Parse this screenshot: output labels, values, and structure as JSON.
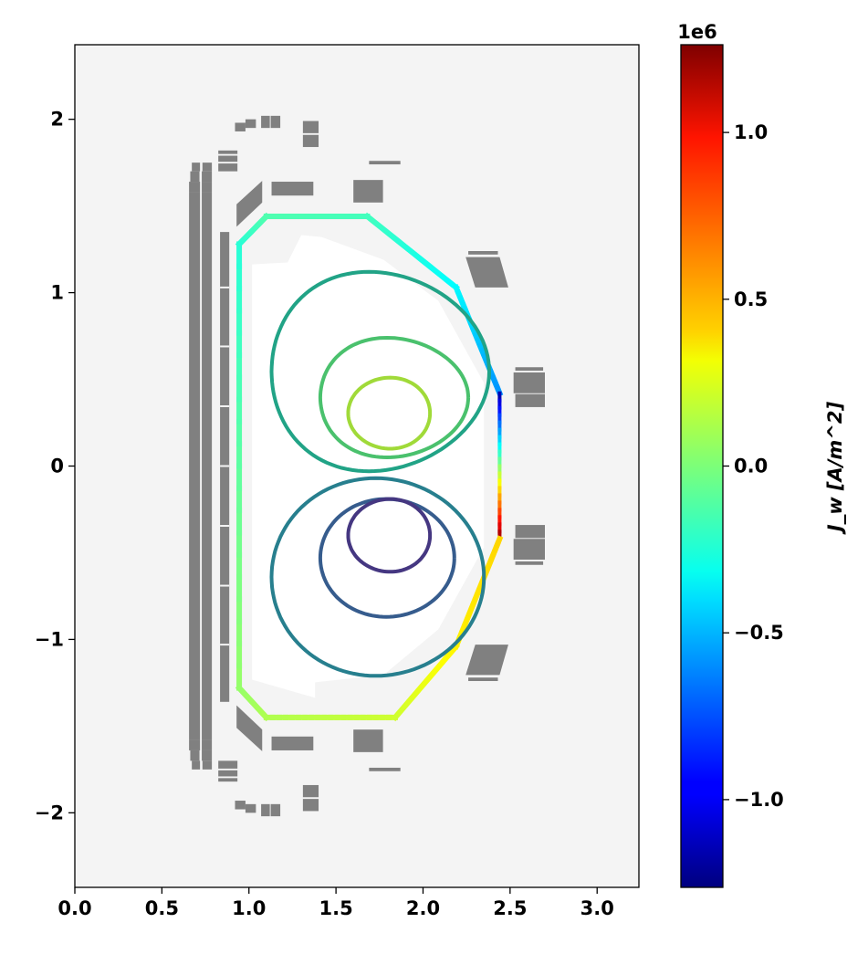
{
  "chart_data": {
    "type": "contour",
    "title": "",
    "xlabel": "",
    "ylabel": "",
    "xlim": [
      0,
      3.24
    ],
    "ylim": [
      -2.43,
      2.43
    ],
    "xticks": [
      "0.0",
      "0.5",
      "1.0",
      "1.5",
      "2.0",
      "2.5",
      "3.0"
    ],
    "xtick_values": [
      0,
      0.5,
      1.0,
      1.5,
      2.0,
      2.5,
      3.0
    ],
    "yticks": [
      "−2",
      "−1",
      "0",
      "1",
      "2"
    ],
    "ytick_values": [
      -2,
      -1,
      0,
      1,
      2
    ],
    "axes_background": "#f4f4f4",
    "coil_color": "#808080",
    "colorbar": {
      "label": "J_w [A/m^2]",
      "label_main": "J",
      "label_sub": "w",
      "label_units": "[A/m",
      "label_sup": "2",
      "label_close": "]",
      "exponent_label": "1e6",
      "range": [
        -1.263,
        1.263
      ],
      "ticks": [
        "−1.0",
        "−0.5",
        "0.0",
        "0.5",
        "1.0"
      ],
      "tick_values": [
        -1.0,
        -0.5,
        0.0,
        0.5,
        1.0
      ],
      "colormap": "jet"
    },
    "wall": [
      {
        "r": 0.944,
        "z": 1.28,
        "j": -0.22
      },
      {
        "r": 1.1,
        "z": 1.44,
        "j": -0.12
      },
      {
        "r": 1.68,
        "z": 1.44,
        "j": -0.15
      },
      {
        "r": 2.19,
        "z": 1.03,
        "j": -0.32
      },
      {
        "r": 2.44,
        "z": 0.42,
        "j": -0.58
      },
      {
        "r": 2.44,
        "z": 0.42,
        "j": -1.2
      },
      {
        "r": 2.44,
        "z": -0.42,
        "j": 1.2
      },
      {
        "r": 2.44,
        "z": -0.42,
        "j": 0.42
      },
      {
        "r": 2.19,
        "z": -1.04,
        "j": 0.35
      },
      {
        "r": 1.84,
        "z": -1.45,
        "j": 0.2
      },
      {
        "r": 1.1,
        "z": -1.45,
        "j": 0.12
      },
      {
        "r": 0.944,
        "z": -1.28,
        "j": 0.06
      },
      {
        "r": 0.944,
        "z": 1.28,
        "j": -0.22
      }
    ],
    "flux_contours": [
      {
        "rmin": 1.13,
        "rmax": 2.38,
        "zmin": -0.03,
        "zmax": 1.12,
        "rpeak": 1.7,
        "color": "#21a386"
      },
      {
        "rmin": 1.41,
        "rmax": 2.26,
        "zmin": 0.05,
        "zmax": 0.74,
        "rpeak": 1.8,
        "color": "#4ac16d"
      },
      {
        "rmin": 1.57,
        "rmax": 2.04,
        "zmin": 0.1,
        "zmax": 0.51,
        "rpeak": 1.81,
        "color": "#a0da39"
      },
      {
        "rmin": 1.13,
        "rmax": 2.35,
        "zmin": -1.21,
        "zmax": -0.07,
        "rpeak": 1.75,
        "color": "#277f8e"
      },
      {
        "rmin": 1.41,
        "rmax": 2.18,
        "zmin": -0.87,
        "zmax": -0.19,
        "rpeak": 1.8,
        "color": "#365c8d"
      },
      {
        "rmin": 1.57,
        "rmax": 2.04,
        "zmin": -0.61,
        "zmax": -0.19,
        "rpeak": 1.8,
        "color": "#453781"
      }
    ],
    "coils_rect": [
      [
        0.656,
        0.719,
        1.58,
        1.64
      ],
      [
        0.729,
        0.787,
        1.58,
        1.64
      ],
      [
        0.663,
        0.716,
        1.64,
        1.7
      ],
      [
        0.729,
        0.787,
        1.64,
        1.7
      ],
      [
        0.672,
        0.719,
        1.7,
        1.75
      ],
      [
        0.733,
        0.787,
        1.7,
        1.75
      ],
      [
        0.824,
        0.934,
        1.7,
        1.745
      ],
      [
        0.824,
        0.934,
        1.755,
        1.79
      ],
      [
        0.824,
        0.934,
        1.8,
        1.82
      ],
      [
        0.92,
        0.98,
        1.93,
        1.98
      ],
      [
        0.98,
        1.04,
        1.95,
        2.0
      ],
      [
        1.07,
        1.12,
        1.95,
        2.02
      ],
      [
        1.125,
        1.18,
        1.95,
        2.02
      ],
      [
        1.31,
        1.4,
        1.84,
        1.91
      ],
      [
        1.31,
        1.4,
        1.92,
        1.99
      ],
      [
        1.13,
        1.37,
        1.56,
        1.64
      ],
      [
        1.6,
        1.77,
        1.52,
        1.65
      ],
      [
        1.69,
        1.87,
        1.74,
        1.76
      ],
      [
        2.26,
        2.43,
        1.22,
        1.24
      ],
      [
        2.52,
        2.7,
        0.42,
        0.54
      ],
      [
        2.53,
        2.7,
        0.34,
        0.415
      ],
      [
        2.53,
        2.69,
        0.55,
        0.57
      ]
    ],
    "coils_poly": [
      [
        [
          0.929,
          1.51
        ],
        [
          1.076,
          1.645
        ],
        [
          1.076,
          1.52
        ],
        [
          0.929,
          1.38
        ]
      ],
      [
        [
          2.245,
          1.205
        ],
        [
          2.44,
          1.205
        ],
        [
          2.49,
          1.03
        ],
        [
          2.3,
          1.03
        ]
      ]
    ],
    "solenoid": {
      "r": [
        [
          0.656,
          0.719
        ],
        [
          0.729,
          0.787
        ]
      ],
      "z": [
        -1.58,
        1.58
      ]
    },
    "pf_stack": {
      "r": [
        0.834,
        0.887
      ],
      "z": [
        -1.36,
        1.35
      ],
      "gaps": [
        1.03,
        0.69,
        0.345,
        0.0,
        -0.345,
        -0.69,
        -1.03
      ]
    }
  }
}
